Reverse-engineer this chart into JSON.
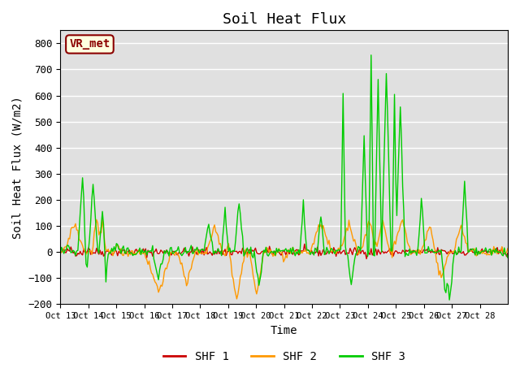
{
  "title": "Soil Heat Flux",
  "ylabel": "Soil Heat Flux (W/m2)",
  "xlabel": "Time",
  "ylim": [
    -200,
    850
  ],
  "yticks": [
    -200,
    -100,
    0,
    100,
    200,
    300,
    400,
    500,
    600,
    700,
    800
  ],
  "legend_label": "VR_met",
  "series_labels": [
    "SHF 1",
    "SHF 2",
    "SHF 3"
  ],
  "colors": [
    "#cc0000",
    "#ff9900",
    "#00cc00"
  ],
  "background_color": "#e0e0e0",
  "x_tick_labels": [
    "Oct 13",
    "Oct 14",
    "Oct 15",
    "Oct 16",
    "Oct 17",
    "Oct 18",
    "Oct 19",
    "Oct 20",
    "Oct 21",
    "Oct 22",
    "Oct 23",
    "Oct 24",
    "Oct 25",
    "Oct 26",
    "Oct 27",
    "Oct 28"
  ],
  "title_fontsize": 13,
  "axis_label_fontsize": 10
}
